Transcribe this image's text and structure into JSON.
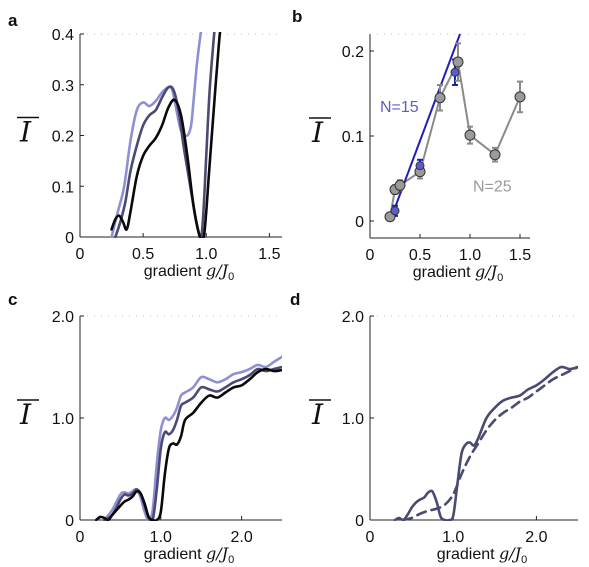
{
  "colors": {
    "light": "#8f8fd6",
    "mid": "#4b4b72",
    "dark": "#0a0a0a",
    "blue": "#1f1fb8",
    "blueMarker": "#5c5cd0",
    "gray": "#8a8a8a",
    "grayMarker": "#9a9a9a"
  },
  "chart_data": [
    {
      "panel": "a",
      "type": "line",
      "xlabel": "gradient",
      "xlabel_math": "g/J",
      "xlabel_sub": "0",
      "ylabel": "I",
      "xlim": [
        0,
        1.6
      ],
      "ylim": [
        0,
        0.4
      ],
      "xticks": [
        {
          "v": 0,
          "t": "0"
        },
        {
          "v": 0.5,
          "t": "0.5"
        },
        {
          "v": 1.0,
          "t": "1.0"
        },
        {
          "v": 1.5,
          "t": "1.5"
        }
      ],
      "yticks": [
        {
          "v": 0,
          "t": "0"
        },
        {
          "v": 0.1,
          "t": "0.1"
        },
        {
          "v": 0.2,
          "t": "0.2"
        },
        {
          "v": 0.3,
          "t": "0.3"
        },
        {
          "v": 0.4,
          "t": "0.4"
        }
      ],
      "series": [
        {
          "color": "light",
          "dash": false,
          "x": [
            0.25,
            0.3,
            0.35,
            0.4,
            0.45,
            0.5,
            0.55,
            0.6,
            0.65,
            0.7,
            0.73,
            0.76,
            0.8,
            0.85,
            0.88,
            0.9,
            0.93,
            0.97,
            1.0
          ],
          "y": [
            0,
            0.05,
            0.1,
            0.19,
            0.25,
            0.265,
            0.258,
            0.268,
            0.285,
            0.295,
            0.29,
            0.255,
            0.21,
            0.2,
            0.22,
            0.27,
            0.35,
            0.42,
            0.42
          ]
        },
        {
          "color": "mid",
          "dash": false,
          "x": [
            0.28,
            0.32,
            0.36,
            0.4,
            0.45,
            0.5,
            0.55,
            0.6,
            0.65,
            0.7,
            0.74,
            0.78,
            0.82,
            0.86,
            0.9,
            0.93,
            0.96,
            0.98,
            1.0,
            1.03,
            1.08
          ],
          "y": [
            0,
            0.03,
            0.07,
            0.13,
            0.18,
            0.22,
            0.24,
            0.25,
            0.275,
            0.295,
            0.29,
            0.25,
            0.18,
            0.12,
            0.06,
            0.02,
            0,
            0.06,
            0.16,
            0.3,
            0.45
          ]
        },
        {
          "color": "dark",
          "dash": false,
          "x": [
            0.25,
            0.28,
            0.31,
            0.34,
            0.37,
            0.4,
            0.45,
            0.5,
            0.55,
            0.6,
            0.65,
            0.7,
            0.75,
            0.8,
            0.85,
            0.9,
            0.95,
            0.98,
            1.0,
            1.02,
            1.05,
            1.1,
            1.13
          ],
          "y": [
            0.015,
            0.035,
            0.042,
            0.03,
            0.015,
            0.05,
            0.12,
            0.16,
            0.18,
            0.195,
            0.22,
            0.255,
            0.27,
            0.24,
            0.16,
            0.06,
            0,
            0,
            0.05,
            0.12,
            0.22,
            0.38,
            0.45
          ]
        }
      ]
    },
    {
      "panel": "b",
      "type": "scatter",
      "xlabel": "gradient",
      "xlabel_math": "g/J",
      "xlabel_sub": "0",
      "ylabel": "I",
      "xlim": [
        0,
        1.6
      ],
      "ylim": [
        -0.02,
        0.22
      ],
      "xticks": [
        {
          "v": 0,
          "t": "0"
        },
        {
          "v": 0.5,
          "t": "0.5"
        },
        {
          "v": 1.0,
          "t": "1.0"
        },
        {
          "v": 1.5,
          "t": "1.5"
        }
      ],
      "yticks": [
        {
          "v": 0,
          "t": "0"
        },
        {
          "v": 0.1,
          "t": "0.1"
        },
        {
          "v": 0.2,
          "t": "0.2"
        }
      ],
      "series": [
        {
          "name": "N=15",
          "color": "blue",
          "marker": "blueMarker",
          "x": [
            0.25,
            0.5,
            0.85
          ],
          "y": [
            0.012,
            0.065,
            0.175
          ],
          "err": [
            0.006,
            0.007,
            0.015
          ],
          "fit": [
            [
              0.2,
              0
            ],
            [
              0.9,
              0.22
            ]
          ]
        },
        {
          "name": "N=25",
          "color": "gray",
          "marker": "grayMarker",
          "x": [
            0.2,
            0.25,
            0.3,
            0.5,
            0.7,
            0.88,
            1.0,
            1.25,
            1.5
          ],
          "y": [
            0.005,
            0.037,
            0.042,
            0.058,
            0.145,
            0.187,
            0.101,
            0.078,
            0.146
          ],
          "err": [
            0.004,
            0.005,
            0.006,
            0.008,
            0.015,
            0.022,
            0.01,
            0.008,
            0.018
          ]
        }
      ],
      "annotations": [
        {
          "text": "N=15",
          "color": "blueMarker",
          "ax": 0.1,
          "ay": 0.128
        },
        {
          "text": "N=25",
          "color": "grayMarker",
          "ax": 1.03,
          "ay": 0.035
        }
      ]
    },
    {
      "panel": "c",
      "type": "line",
      "xlabel": "gradient",
      "xlabel_math": "g/J",
      "xlabel_sub": "0",
      "ylabel": "I",
      "xlim": [
        0,
        2.5
      ],
      "ylim": [
        0,
        2.0
      ],
      "xticks": [
        {
          "v": 0,
          "t": "0"
        },
        {
          "v": 1.0,
          "t": "1.0"
        },
        {
          "v": 2.0,
          "t": "2.0"
        }
      ],
      "yticks": [
        {
          "v": 0,
          "t": "0"
        },
        {
          "v": 1.0,
          "t": "1.0"
        },
        {
          "v": 2.0,
          "t": "2.0"
        }
      ],
      "series": [
        {
          "color": "light",
          "dash": false,
          "x": [
            0.3,
            0.4,
            0.5,
            0.55,
            0.6,
            0.65,
            0.7,
            0.75,
            0.8,
            0.85,
            0.9,
            0.95,
            1.0,
            1.05,
            1.1,
            1.15,
            1.2,
            1.25,
            1.3,
            1.4,
            1.5,
            1.6,
            1.7,
            1.8,
            1.9,
            2.0,
            2.1,
            2.2,
            2.3,
            2.4,
            2.5
          ],
          "y": [
            0,
            0.1,
            0.25,
            0.27,
            0.26,
            0.28,
            0.3,
            0.22,
            0.08,
            0,
            0.1,
            0.55,
            0.88,
            1.0,
            0.98,
            1.02,
            1.1,
            1.22,
            1.25,
            1.3,
            1.4,
            1.38,
            1.35,
            1.38,
            1.43,
            1.45,
            1.48,
            1.52,
            1.5,
            1.55,
            1.6
          ]
        },
        {
          "color": "mid",
          "dash": false,
          "x": [
            0.3,
            0.4,
            0.5,
            0.55,
            0.6,
            0.65,
            0.7,
            0.75,
            0.8,
            0.85,
            0.9,
            0.95,
            1.0,
            1.05,
            1.1,
            1.15,
            1.2,
            1.25,
            1.3,
            1.4,
            1.5,
            1.6,
            1.7,
            1.8,
            1.9,
            2.0,
            2.1,
            2.2,
            2.3,
            2.4,
            2.5
          ],
          "y": [
            0,
            0.05,
            0.2,
            0.25,
            0.24,
            0.26,
            0.3,
            0.26,
            0.14,
            0.02,
            0,
            0.3,
            0.7,
            0.86,
            0.84,
            0.88,
            0.98,
            1.12,
            1.15,
            1.2,
            1.3,
            1.28,
            1.26,
            1.3,
            1.35,
            1.38,
            1.42,
            1.48,
            1.46,
            1.48,
            1.5
          ]
        },
        {
          "color": "dark",
          "dash": false,
          "x": [
            0.2,
            0.25,
            0.3,
            0.35,
            0.4,
            0.5,
            0.55,
            0.6,
            0.65,
            0.7,
            0.75,
            0.8,
            0.85,
            0.9,
            0.95,
            1.0,
            1.05,
            1.1,
            1.15,
            1.2,
            1.25,
            1.3,
            1.4,
            1.5,
            1.6,
            1.7,
            1.8,
            1.9,
            2.0,
            2.1,
            2.2,
            2.3,
            2.4,
            2.5
          ],
          "y": [
            0,
            0.03,
            0.02,
            0,
            0.05,
            0.14,
            0.18,
            0.2,
            0.23,
            0.28,
            0.26,
            0.16,
            0.03,
            0,
            0,
            0.08,
            0.45,
            0.7,
            0.75,
            0.74,
            0.82,
            0.98,
            1.05,
            1.15,
            1.22,
            1.2,
            1.25,
            1.3,
            1.32,
            1.38,
            1.45,
            1.48,
            1.46,
            1.47
          ]
        }
      ]
    },
    {
      "panel": "d",
      "type": "line",
      "xlabel": "gradient",
      "xlabel_math": "g/J",
      "xlabel_sub": "0",
      "ylabel": "I",
      "xlim": [
        0,
        2.5
      ],
      "ylim": [
        0,
        2.0
      ],
      "xticks": [
        {
          "v": 0,
          "t": "0"
        },
        {
          "v": 1.0,
          "t": "1.0"
        },
        {
          "v": 2.0,
          "t": "2.0"
        }
      ],
      "yticks": [
        {
          "v": 0,
          "t": "0"
        },
        {
          "v": 1.0,
          "t": "1.0"
        },
        {
          "v": 2.0,
          "t": "2.0"
        }
      ],
      "series": [
        {
          "color": "mid",
          "dash": false,
          "x": [
            0.3,
            0.35,
            0.4,
            0.45,
            0.5,
            0.55,
            0.6,
            0.65,
            0.7,
            0.75,
            0.8,
            0.85,
            0.9,
            0.95,
            1.0,
            1.05,
            1.1,
            1.15,
            1.2,
            1.25,
            1.3,
            1.4,
            1.5,
            1.6,
            1.7,
            1.8,
            1.9,
            2.0,
            2.1,
            2.2,
            2.3,
            2.4,
            2.5
          ],
          "y": [
            0,
            0.02,
            0,
            0.05,
            0.12,
            0.17,
            0.2,
            0.22,
            0.27,
            0.28,
            0.18,
            0.03,
            0,
            0,
            0.04,
            0.35,
            0.65,
            0.74,
            0.76,
            0.73,
            0.8,
            1.0,
            1.1,
            1.17,
            1.2,
            1.22,
            1.28,
            1.32,
            1.38,
            1.45,
            1.5,
            1.48,
            1.5
          ]
        },
        {
          "color": "mid",
          "dash": true,
          "x": [
            0.4,
            0.5,
            0.6,
            0.7,
            0.8,
            0.9,
            1.0,
            1.1,
            1.2,
            1.3,
            1.4,
            1.5,
            1.6,
            1.7,
            1.8,
            1.9,
            2.0,
            2.1,
            2.2,
            2.3,
            2.4,
            2.5
          ],
          "y": [
            0,
            0.02,
            0.06,
            0.09,
            0.11,
            0.15,
            0.25,
            0.45,
            0.62,
            0.75,
            0.88,
            0.98,
            1.05,
            1.1,
            1.16,
            1.2,
            1.26,
            1.32,
            1.38,
            1.42,
            1.46,
            1.5
          ]
        }
      ]
    }
  ]
}
